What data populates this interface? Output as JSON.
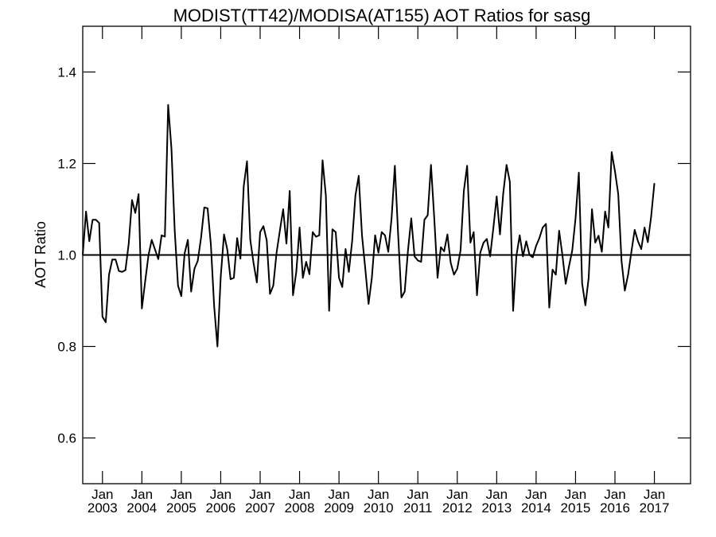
{
  "chart_data": {
    "type": "line",
    "title": "MODIST(TT42)/MODISA(AT155)  AOT Ratios for sasg",
    "ylabel": "AOT Ratio",
    "xlabel": "",
    "xlim": [
      2002.5,
      2017.917
    ],
    "ylim": [
      0.5,
      1.5
    ],
    "yticks": [
      0.6,
      0.8,
      1.0,
      1.2,
      1.4
    ],
    "ytick_labels": [
      "0.6",
      "0.8",
      "1.0",
      "1.2",
      "1.4"
    ],
    "xticks": [
      2003,
      2004,
      2005,
      2006,
      2007,
      2008,
      2009,
      2010,
      2011,
      2012,
      2013,
      2014,
      2015,
      2016,
      2017
    ],
    "xtick_month_label": "Jan",
    "xtick_labels": [
      "2003",
      "2004",
      "2005",
      "2006",
      "2007",
      "2008",
      "2009",
      "2010",
      "2011",
      "2012",
      "2013",
      "2014",
      "2015",
      "2016",
      "2017"
    ],
    "reference_line": 1.0,
    "grid": false,
    "legend": "none",
    "x_start": "2002-07",
    "x_step_months": 1,
    "series": [
      {
        "values": [
          1.0,
          1.095,
          1.03,
          1.077,
          1.077,
          1.07,
          0.865,
          0.853,
          0.957,
          0.99,
          0.99,
          0.965,
          0.963,
          0.967,
          1.025,
          1.12,
          1.092,
          1.133,
          0.883,
          0.942,
          0.999,
          1.033,
          1.012,
          0.991,
          1.043,
          1.04,
          1.328,
          1.233,
          1.053,
          0.933,
          0.91,
          1.003,
          1.033,
          0.92,
          0.97,
          0.987,
          1.037,
          1.104,
          1.102,
          1.023,
          0.888,
          0.8,
          0.952,
          1.045,
          1.012,
          0.947,
          0.95,
          1.037,
          0.992,
          1.15,
          1.205,
          1.033,
          0.982,
          0.94,
          1.05,
          1.063,
          1.032,
          0.915,
          0.933,
          1.005,
          1.053,
          1.1,
          1.025,
          1.14,
          0.912,
          0.963,
          1.06,
          0.95,
          0.985,
          0.958,
          1.05,
          1.04,
          1.043,
          1.207,
          1.13,
          0.878,
          1.056,
          1.05,
          0.95,
          0.93,
          1.013,
          0.963,
          1.03,
          1.13,
          1.173,
          1.043,
          0.97,
          0.893,
          0.95,
          1.043,
          1.005,
          1.05,
          1.043,
          1.007,
          1.08,
          1.195,
          1.045,
          0.907,
          0.92,
          1.01,
          1.08,
          0.997,
          0.988,
          0.985,
          1.077,
          1.087,
          1.197,
          1.08,
          0.95,
          1.017,
          1.008,
          1.045,
          0.983,
          0.957,
          0.97,
          1.01,
          1.14,
          1.195,
          1.027,
          1.05,
          0.912,
          1.005,
          1.027,
          1.035,
          0.997,
          1.06,
          1.128,
          1.045,
          1.135,
          1.197,
          1.16,
          0.878,
          0.998,
          1.043,
          0.997,
          1.03,
          1.0,
          0.995,
          1.02,
          1.037,
          1.06,
          1.068,
          0.885,
          0.968,
          0.957,
          1.053,
          1.0,
          0.937,
          0.975,
          1.01,
          1.08,
          1.18,
          0.938,
          0.89,
          0.95,
          1.1,
          1.027,
          1.042,
          1.007,
          1.095,
          1.06,
          1.225,
          1.183,
          1.133,
          0.987,
          0.922,
          0.957,
          1.007,
          1.055,
          1.03,
          1.013,
          1.06,
          1.028,
          1.083,
          1.157
        ]
      }
    ]
  }
}
